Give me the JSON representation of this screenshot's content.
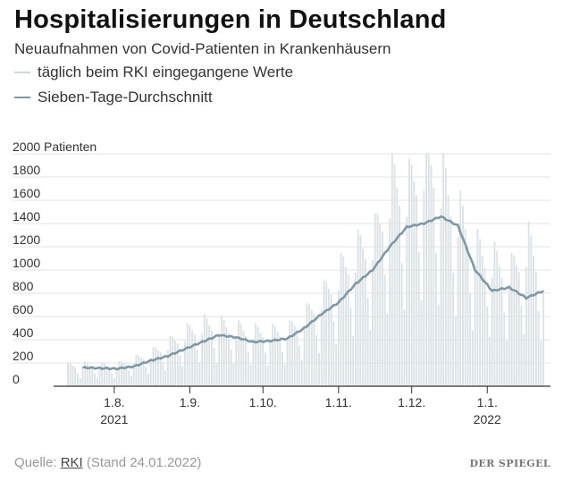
{
  "header": {
    "title": "Hospitalisierungen in Deutschland",
    "subtitle": "Neuaufnahmen von Covid-Patienten in Krankenhäusern"
  },
  "legend": {
    "daily": "täglich beim RKI eingegangene Werte",
    "average": "Sieben-Tage-Durchschnitt"
  },
  "footer": {
    "source_prefix": "Quelle: ",
    "source_link": "RKI",
    "source_suffix": " (Stand 24.01.2022)",
    "logo": "DER SPIEGEL"
  },
  "colors": {
    "bars": "#dce3e7",
    "line": "#7e99a5",
    "axis": "#333333",
    "grid": "#e3e3e3"
  },
  "chart_data": {
    "type": "bar",
    "start_date": "2021-07-13",
    "end_date": "2022-01-24",
    "y_ticks": [
      "0",
      "200",
      "400",
      "600",
      "800",
      "1000",
      "1200",
      "1400",
      "1600",
      "1800",
      "2000 Patienten"
    ],
    "y_tick_values": [
      0,
      200,
      400,
      600,
      800,
      1000,
      1200,
      1400,
      1600,
      1800,
      2000
    ],
    "ylim": [
      0,
      2000
    ],
    "x_ticks": [
      {
        "date": "2021-08-01",
        "label": "1.8.",
        "year": "2021"
      },
      {
        "date": "2021-09-01",
        "label": "1.9.",
        "year": ""
      },
      {
        "date": "2021-10-01",
        "label": "1.10.",
        "year": ""
      },
      {
        "date": "2021-11-01",
        "label": "1.11.",
        "year": ""
      },
      {
        "date": "2021-12-01",
        "label": "1.12.",
        "year": ""
      },
      {
        "date": "2022-01-01",
        "label": "1.1.",
        "year": "2022"
      }
    ],
    "series": [
      {
        "name": "täglich beim RKI eingegangene Werte",
        "points": [
          [
            "2021-07-13",
            150
          ],
          [
            "2021-07-20",
            160
          ],
          [
            "2021-07-27",
            150
          ],
          [
            "2021-08-03",
            160
          ],
          [
            "2021-08-10",
            200
          ],
          [
            "2021-08-17",
            250
          ],
          [
            "2021-08-24",
            320
          ],
          [
            "2021-08-31",
            400
          ],
          [
            "2021-09-07",
            460
          ],
          [
            "2021-09-14",
            450
          ],
          [
            "2021-09-21",
            420
          ],
          [
            "2021-09-28",
            400
          ],
          [
            "2021-10-05",
            400
          ],
          [
            "2021-10-12",
            420
          ],
          [
            "2021-10-19",
            530
          ],
          [
            "2021-10-26",
            680
          ],
          [
            "2021-11-02",
            850
          ],
          [
            "2021-11-09",
            1000
          ],
          [
            "2021-11-16",
            1100
          ],
          [
            "2021-11-23",
            1500
          ],
          [
            "2021-11-30",
            1450
          ],
          [
            "2021-12-07",
            1720
          ],
          [
            "2021-12-14",
            1500
          ],
          [
            "2021-12-21",
            1250
          ],
          [
            "2021-12-28",
            1000
          ],
          [
            "2022-01-04",
            920
          ],
          [
            "2022-01-11",
            850
          ],
          [
            "2022-01-18",
            1050
          ],
          [
            "2022-01-24",
            830
          ]
        ]
      },
      {
        "name": "Sieben-Tage-Durchschnitt",
        "points": [
          [
            "2021-07-19",
            160
          ],
          [
            "2021-07-26",
            155
          ],
          [
            "2021-08-02",
            150
          ],
          [
            "2021-08-09",
            170
          ],
          [
            "2021-08-16",
            220
          ],
          [
            "2021-08-23",
            260
          ],
          [
            "2021-08-30",
            320
          ],
          [
            "2021-09-06",
            380
          ],
          [
            "2021-09-13",
            440
          ],
          [
            "2021-09-20",
            420
          ],
          [
            "2021-09-27",
            380
          ],
          [
            "2021-10-04",
            390
          ],
          [
            "2021-10-11",
            410
          ],
          [
            "2021-10-18",
            500
          ],
          [
            "2021-10-25",
            620
          ],
          [
            "2021-11-01",
            720
          ],
          [
            "2021-11-08",
            880
          ],
          [
            "2021-11-15",
            1000
          ],
          [
            "2021-11-22",
            1200
          ],
          [
            "2021-11-29",
            1370
          ],
          [
            "2021-12-06",
            1400
          ],
          [
            "2021-12-13",
            1460
          ],
          [
            "2021-12-20",
            1380
          ],
          [
            "2021-12-27",
            1000
          ],
          [
            "2022-01-03",
            820
          ],
          [
            "2022-01-10",
            850
          ],
          [
            "2022-01-17",
            760
          ],
          [
            "2022-01-24",
            820
          ]
        ]
      }
    ]
  }
}
